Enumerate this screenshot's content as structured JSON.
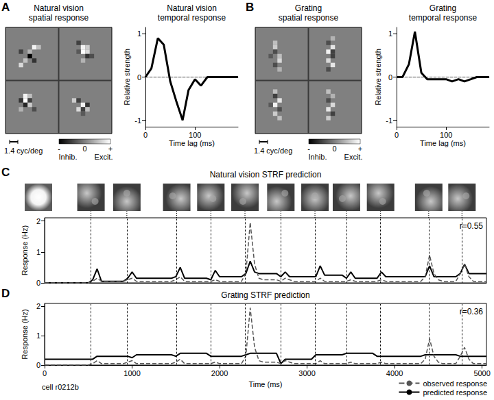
{
  "chart_data": [
    {
      "type": "heatmap",
      "panel_label": "A",
      "title": "Natural vision\nspatial response",
      "xlim": [
        0,
        24
      ],
      "ylim": [
        0,
        24
      ],
      "tick_labels": false,
      "cells": [
        [
          6,
          19,
          0.9
        ],
        [
          7,
          19,
          0.5
        ],
        [
          5,
          18,
          0.4
        ],
        [
          5,
          17,
          -1
        ],
        [
          6,
          16,
          -0.6
        ],
        [
          3,
          18,
          -0.5
        ],
        [
          4,
          16,
          0.5
        ],
        [
          3,
          15,
          0.7
        ],
        [
          17,
          19,
          0.9
        ],
        [
          18,
          19,
          0.6
        ],
        [
          17,
          18,
          1
        ],
        [
          18,
          18,
          0.7
        ],
        [
          16,
          20,
          -0.5
        ],
        [
          18,
          17,
          -0.6
        ],
        [
          19,
          17,
          -0.4
        ],
        [
          16,
          18,
          -0.3
        ],
        [
          17,
          16,
          0.4
        ],
        [
          4,
          8,
          0.9
        ],
        [
          5,
          8,
          0.5
        ],
        [
          4,
          7,
          1
        ],
        [
          3,
          7,
          -0.6
        ],
        [
          5,
          7,
          -0.5
        ],
        [
          4,
          6,
          -0.7
        ],
        [
          5,
          6,
          0.6
        ],
        [
          6,
          5,
          -0.4
        ],
        [
          3,
          5,
          0.4
        ],
        [
          15,
          7,
          0.6
        ],
        [
          16,
          7,
          -0.5
        ],
        [
          17,
          6,
          0.9
        ],
        [
          18,
          6,
          -0.6
        ],
        [
          16,
          5,
          0.7
        ],
        [
          17,
          5,
          -0.5
        ],
        [
          18,
          5,
          0.5
        ],
        [
          17,
          4,
          -0.3
        ]
      ],
      "colorbar_range": [
        -1,
        1
      ],
      "colorbar_ticks": [
        {
          "value": -1,
          "label": "-"
        },
        0,
        {
          "value": 1,
          "label": "+"
        }
      ],
      "colorbar_labels": [
        "Inhib.",
        "Excit."
      ],
      "scale_bar_label": "1.4 cyc/deg"
    },
    {
      "type": "line",
      "title": "Natural vision\ntemporal response",
      "x": [
        0,
        12,
        25,
        37,
        50,
        62,
        75,
        87,
        100,
        112,
        125,
        137,
        150,
        162,
        175,
        187
      ],
      "values": [
        0,
        0.2,
        0.9,
        0.75,
        -0.1,
        -0.55,
        -1,
        -0.3,
        -0.05,
        -0.2,
        0,
        0,
        0,
        0,
        0,
        0
      ],
      "color": "#000000",
      "xlim": [
        0,
        187
      ],
      "xticks": [
        0,
        100
      ],
      "ylim": [
        -1.15,
        1.15
      ],
      "yticks": [
        -1,
        0,
        1
      ],
      "xlabel": "Time lag (ms)",
      "ylabel": "Relative strength"
    },
    {
      "type": "heatmap",
      "panel_label": "B",
      "title": "Grating\nspatial response",
      "xlim": [
        0,
        24
      ],
      "ylim": [
        0,
        24
      ],
      "tick_labels": false,
      "cells": [
        [
          4,
          20,
          0.5
        ],
        [
          4,
          19,
          0.6
        ],
        [
          4,
          18,
          -0.4
        ],
        [
          5,
          17,
          0.5
        ],
        [
          5,
          16,
          0.7
        ],
        [
          4,
          15,
          -0.4
        ],
        [
          5,
          14,
          0.4
        ],
        [
          3,
          17,
          -0.3
        ],
        [
          17,
          21,
          0.4
        ],
        [
          16,
          20,
          -0.4
        ],
        [
          17,
          19,
          0.8
        ],
        [
          16,
          18,
          0.9
        ],
        [
          17,
          18,
          -0.5
        ],
        [
          17,
          17,
          -0.5
        ],
        [
          16,
          16,
          0.7
        ],
        [
          17,
          15,
          0.8
        ],
        [
          16,
          14,
          -0.4
        ],
        [
          4,
          9,
          0.5
        ],
        [
          4,
          8,
          -0.5
        ],
        [
          5,
          7,
          0.8
        ],
        [
          4,
          6,
          0.9
        ],
        [
          5,
          5,
          -0.4
        ],
        [
          4,
          4,
          0.6
        ],
        [
          5,
          3,
          0.5
        ],
        [
          3,
          6,
          -0.3
        ],
        [
          16,
          9,
          0.5
        ],
        [
          17,
          8,
          0.4
        ],
        [
          16,
          7,
          -0.4
        ],
        [
          17,
          6,
          0.7
        ],
        [
          16,
          5,
          0.8
        ],
        [
          17,
          4,
          -0.5
        ],
        [
          16,
          3,
          0.6
        ]
      ],
      "colorbar_range": [
        -1,
        1
      ],
      "colorbar_ticks": [
        {
          "value": -1,
          "label": "-"
        },
        0,
        {
          "value": 1,
          "label": "+"
        }
      ],
      "colorbar_labels": [
        "Inhib.",
        "Excit."
      ],
      "scale_bar_label": "1.4 cyc/deg"
    },
    {
      "type": "line",
      "title": "Grating\ntemporal response",
      "x": [
        0,
        12,
        25,
        37,
        50,
        62,
        75,
        87,
        100,
        112,
        125,
        137,
        150,
        162,
        175,
        187
      ],
      "values": [
        0,
        0,
        0.3,
        1.05,
        0.1,
        -0.05,
        -0.05,
        -0.05,
        -0.05,
        -0.1,
        -0.05,
        -0.1,
        -0.05,
        0,
        0,
        0
      ],
      "color": "#000000",
      "xlim": [
        0,
        187
      ],
      "xticks": [
        0,
        100
      ],
      "ylim": [
        -1.15,
        1.15
      ],
      "yticks": [
        -1,
        0,
        1
      ],
      "xlabel": "Time lag (ms)",
      "ylabel": "Relative strength"
    },
    {
      "type": "line",
      "panel_label": "C",
      "title": "Natural vision STRF prediction",
      "x": [
        0,
        50,
        100,
        150,
        200,
        250,
        300,
        350,
        400,
        450,
        500,
        550,
        600,
        650,
        700,
        750,
        800,
        850,
        900,
        950,
        1000,
        1050,
        1100,
        1150,
        1200,
        1250,
        1300,
        1350,
        1400,
        1450,
        1500,
        1550,
        1600,
        1650,
        1700,
        1750,
        1800,
        1850,
        1900,
        1950,
        2000,
        2050,
        2100,
        2150,
        2200,
        2250,
        2300,
        2350,
        2400,
        2450,
        2500,
        2550,
        2600,
        2650,
        2700,
        2750,
        2800,
        2850,
        2900,
        2950,
        3000,
        3050,
        3100,
        3150,
        3200,
        3250,
        3300,
        3350,
        3400,
        3450,
        3500,
        3550,
        3600,
        3650,
        3700,
        3750,
        3800,
        3850,
        3900,
        3950,
        4000,
        4050,
        4100,
        4150,
        4200,
        4250,
        4300,
        4350,
        4400,
        4450,
        4500,
        4550,
        4600,
        4650,
        4700,
        4750,
        4800,
        4850,
        4900,
        4950,
        5000,
        5050
      ],
      "series": [
        {
          "name": "observed response",
          "color": "#555555",
          "line_style": "dashed",
          "values": [
            0,
            0,
            0,
            0,
            0,
            0,
            0,
            0,
            0,
            0,
            0,
            0.05,
            0.15,
            0.05,
            0.05,
            0.05,
            0.05,
            0.05,
            0.05,
            0.1,
            0.15,
            0.05,
            0.05,
            0.05,
            0.05,
            0.05,
            0.05,
            0.05,
            0.05,
            0.05,
            0.1,
            0.2,
            0.05,
            0.05,
            0.05,
            0.05,
            0.05,
            0.05,
            0.05,
            0.1,
            0.05,
            0.05,
            0.05,
            0.05,
            0.05,
            0.05,
            0.3,
            1.95,
            0.6,
            0.15,
            0.1,
            0.1,
            0.1,
            0.1,
            0.05,
            0.15,
            0.1,
            0.05,
            0.05,
            0.05,
            0.05,
            0.05,
            0.05,
            0.15,
            0.05,
            0.05,
            0.05,
            0.05,
            0.05,
            0.05,
            0.1,
            0.05,
            0.05,
            0.05,
            0.05,
            0.05,
            0.05,
            0.1,
            0.05,
            0.05,
            0.05,
            0.05,
            0.05,
            0.05,
            0.05,
            0.05,
            0.05,
            0.2,
            0.9,
            0.3,
            0.1,
            0.05,
            0.05,
            0.05,
            0.05,
            0.3,
            0.6,
            0.2,
            0.05,
            0.05,
            0.05,
            0.05
          ]
        },
        {
          "name": "predicted response",
          "color": "#000000",
          "line_style": "solid",
          "values": [
            0,
            0,
            0,
            0,
            0,
            0,
            0,
            0,
            0,
            0,
            0,
            0.1,
            0.45,
            0.05,
            0.05,
            0.05,
            0.05,
            0.05,
            0.05,
            0.15,
            0.35,
            0.15,
            0.15,
            0.15,
            0.15,
            0.15,
            0.15,
            0.15,
            0.15,
            0.15,
            0.2,
            0.5,
            0.15,
            0.15,
            0.15,
            0.15,
            0.15,
            0.15,
            0.1,
            0.4,
            0.2,
            0.2,
            0.2,
            0.2,
            0.2,
            0.2,
            0.3,
            0.7,
            0.35,
            0.3,
            0.3,
            0.3,
            0.3,
            0.3,
            0.2,
            0.35,
            0.2,
            0.2,
            0.2,
            0.2,
            0.2,
            0.2,
            0.2,
            0.55,
            0.25,
            0.25,
            0.25,
            0.25,
            0.25,
            0.15,
            0.35,
            0.15,
            0.15,
            0.15,
            0.15,
            0.15,
            0.15,
            0.35,
            0.2,
            0.2,
            0.2,
            0.2,
            0.2,
            0.2,
            0.2,
            0.2,
            0.2,
            0.2,
            0.55,
            0.2,
            0.2,
            0.2,
            0.2,
            0.2,
            0.2,
            0.3,
            0.6,
            0.3,
            0.3,
            0.3,
            0.3,
            0.3
          ]
        }
      ],
      "stimulus_onsets": [
        530,
        940,
        1510,
        1900,
        2290,
        2700,
        3090,
        3450,
        3840,
        4390,
        4770
      ],
      "xlim": [
        0,
        5050
      ],
      "tick_labels": "y",
      "ylim": [
        0,
        2.1
      ],
      "yticks": [
        0,
        1,
        2
      ],
      "ylabel": "Response (Hz)",
      "annotation": "r=0.55"
    },
    {
      "type": "line",
      "panel_label": "D",
      "title": "Grating STRF prediction",
      "x": [
        0,
        50,
        100,
        150,
        200,
        250,
        300,
        350,
        400,
        450,
        500,
        550,
        600,
        650,
        700,
        750,
        800,
        850,
        900,
        950,
        1000,
        1050,
        1100,
        1150,
        1200,
        1250,
        1300,
        1350,
        1400,
        1450,
        1500,
        1550,
        1600,
        1650,
        1700,
        1750,
        1800,
        1850,
        1900,
        1950,
        2000,
        2050,
        2100,
        2150,
        2200,
        2250,
        2300,
        2350,
        2400,
        2450,
        2500,
        2550,
        2600,
        2650,
        2700,
        2750,
        2800,
        2850,
        2900,
        2950,
        3000,
        3050,
        3100,
        3150,
        3200,
        3250,
        3300,
        3350,
        3400,
        3450,
        3500,
        3550,
        3600,
        3650,
        3700,
        3750,
        3800,
        3850,
        3900,
        3950,
        4000,
        4050,
        4100,
        4150,
        4200,
        4250,
        4300,
        4350,
        4400,
        4450,
        4500,
        4550,
        4600,
        4650,
        4700,
        4750,
        4800,
        4850,
        4900,
        4950,
        5000,
        5050
      ],
      "series": [
        {
          "name": "observed response",
          "color": "#555555",
          "line_style": "dashed",
          "values": [
            0,
            0,
            0,
            0,
            0,
            0,
            0,
            0,
            0,
            0,
            0,
            0.05,
            0.15,
            0.05,
            0.05,
            0.05,
            0.05,
            0.05,
            0.05,
            0.1,
            0.15,
            0.05,
            0.05,
            0.05,
            0.05,
            0.05,
            0.05,
            0.05,
            0.05,
            0.05,
            0.1,
            0.2,
            0.05,
            0.05,
            0.05,
            0.05,
            0.05,
            0.05,
            0.05,
            0.1,
            0.05,
            0.05,
            0.05,
            0.05,
            0.05,
            0.05,
            0.3,
            1.95,
            0.6,
            0.15,
            0.1,
            0.1,
            0.1,
            0.1,
            0.05,
            0.15,
            0.1,
            0.05,
            0.05,
            0.05,
            0.05,
            0.05,
            0.05,
            0.15,
            0.05,
            0.05,
            0.05,
            0.05,
            0.05,
            0.05,
            0.1,
            0.05,
            0.05,
            0.05,
            0.05,
            0.05,
            0.05,
            0.1,
            0.05,
            0.05,
            0.05,
            0.05,
            0.05,
            0.05,
            0.05,
            0.05,
            0.05,
            0.2,
            0.9,
            0.3,
            0.1,
            0.05,
            0.05,
            0.05,
            0.05,
            0.3,
            0.6,
            0.2,
            0.05,
            0.05,
            0.05,
            0.05
          ]
        },
        {
          "name": "predicted response",
          "color": "#000000",
          "line_style": "solid",
          "values": [
            0.2,
            0.2,
            0.2,
            0.2,
            0.2,
            0.2,
            0.2,
            0.2,
            0.2,
            0.2,
            0.2,
            0.2,
            0.3,
            0.3,
            0.3,
            0.3,
            0.3,
            0.3,
            0.3,
            0.3,
            0.25,
            0.35,
            0.35,
            0.35,
            0.35,
            0.35,
            0.35,
            0.35,
            0.35,
            0.35,
            0.3,
            0.4,
            0.4,
            0.4,
            0.4,
            0.4,
            0.4,
            0.4,
            0.3,
            0.3,
            0.3,
            0.3,
            0.3,
            0.3,
            0.3,
            0.3,
            0.35,
            0.4,
            0.4,
            0.4,
            0.4,
            0.4,
            0.4,
            0.4,
            0.05,
            0.2,
            0.2,
            0.2,
            0.2,
            0.2,
            0.2,
            0.2,
            0.35,
            0.35,
            0.35,
            0.35,
            0.35,
            0.35,
            0.35,
            0.4,
            0.4,
            0.4,
            0.4,
            0.4,
            0.4,
            0.4,
            0.3,
            0.3,
            0.3,
            0.3,
            0.3,
            0.3,
            0.3,
            0.3,
            0.3,
            0.3,
            0.3,
            0.35,
            0.35,
            0.35,
            0.35,
            0.35,
            0.35,
            0.35,
            0.35,
            0.3,
            0.3,
            0.3,
            0.3,
            0.3,
            0.3,
            0.3
          ]
        }
      ],
      "stimulus_onsets": [
        530,
        940,
        1510,
        1900,
        2290,
        2700,
        3090,
        3450,
        3840,
        4390,
        4770
      ],
      "xlim": [
        0,
        5050
      ],
      "xticks": [
        0,
        1000,
        2000,
        3000,
        4000,
        5000
      ],
      "ylim": [
        0,
        2.1
      ],
      "yticks": [
        0,
        1,
        2
      ],
      "xlabel": "Time (ms)",
      "ylabel": "Response (Hz)",
      "annotation": "r=0.36",
      "cell_label": "cell r0212b",
      "legend": "lower right"
    }
  ]
}
